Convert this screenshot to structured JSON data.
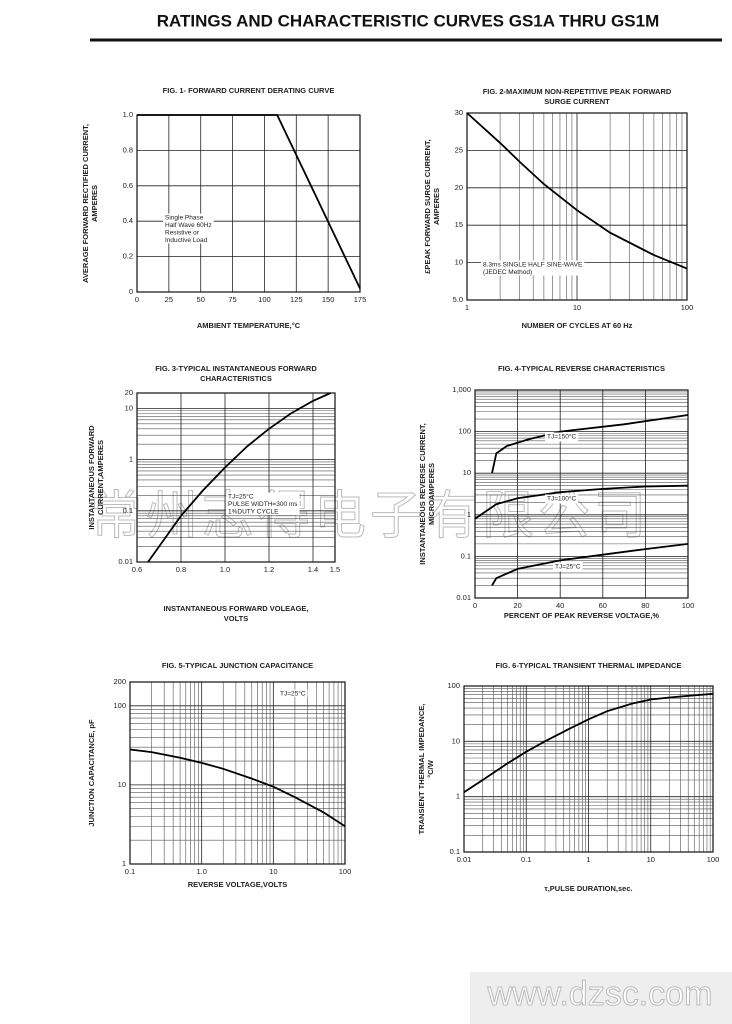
{
  "header": {
    "title": "RATINGS AND CHARACTERISTIC CURVES GS1A THRU GS1M"
  },
  "watermarks": [
    "常州志得电子有限公司",
    "www.dzsc.com"
  ],
  "chart_data": [
    {
      "type": "line",
      "title": [
        "FIG. 1- FORWARD CURRENT DERATING CURVE"
      ],
      "ylabel": [
        "AVERAGE FORWARD RECTIFIED CURRENT,",
        "AMPERES"
      ],
      "xlabel": [
        "AMBIENT TEMPERATURE,°C"
      ],
      "xscale": "linear",
      "yscale": "linear",
      "xlim": [
        0,
        175
      ],
      "ylim": [
        0,
        1
      ],
      "xticks": [
        0,
        25,
        50,
        75,
        100,
        125,
        150,
        175
      ],
      "yticks": [
        0,
        0.2,
        0.4,
        0.6,
        0.8,
        {
          "value": 1,
          "label": "1.0"
        }
      ],
      "grid": true,
      "annotations": [
        [
          "Single Phase",
          "Half Wave 60Hz",
          "Resistive or",
          "Inductive Load"
        ]
      ],
      "series": [
        {
          "color": "#000000",
          "x": [
            0,
            110,
            175
          ],
          "values": [
            1,
            1,
            0.02
          ]
        }
      ]
    },
    {
      "type": "line",
      "title": [
        "FIG. 2-MAXIMUM NON-REPETITIVE PEAK FORWARD",
        "SURGE CURRENT"
      ],
      "ylabel": [
        "£PEAK  FORWARD SURGE CURRENT,",
        "AMPERES"
      ],
      "xlabel": [
        "NUMBER OF CYCLES AT 60 Hz"
      ],
      "xscale": "log",
      "yscale": "linear",
      "xlim": [
        1,
        100
      ],
      "ylim": [
        5,
        30
      ],
      "xticks": [
        1,
        10,
        100
      ],
      "yticks": [
        {
          "value": 5,
          "label": "5.0"
        },
        10,
        15,
        20,
        25,
        30
      ],
      "grid": true,
      "xminor": [
        2,
        3,
        4,
        5,
        6,
        7,
        8,
        9,
        20,
        30,
        40,
        50,
        60,
        70,
        80,
        90
      ],
      "annotations": [
        [
          "8.3ms SINGLE HALF SINE-WAVE",
          "(JEDEC Method)"
        ]
      ],
      "series": [
        {
          "color": "#000000",
          "x": [
            1,
            2,
            3,
            5,
            10,
            20,
            50,
            100
          ],
          "values": [
            30,
            26,
            23.5,
            20.5,
            17,
            14,
            11,
            9.2
          ]
        }
      ]
    },
    {
      "type": "line",
      "title": [
        "FIG. 3-TYPICAL INSTANTANEOUS FORWARD",
        "CHARACTERISTICS"
      ],
      "ylabel": [
        "INSTANTANEOUS FORWARD",
        "CURRENT,AMPERES"
      ],
      "xlabel": [
        "INSTANTANEOUS FORWARD VOLEAGE,",
        "VOLTS"
      ],
      "xscale": "linear",
      "yscale": "log",
      "xlim": [
        0.6,
        1.5
      ],
      "ylim": [
        0.01,
        20
      ],
      "xticks": [
        0.6,
        0.8,
        {
          "value": 1,
          "label": "1.0"
        },
        1.2,
        1.4,
        1.5
      ],
      "yticks": [
        0.01,
        0.1,
        1,
        10,
        20
      ],
      "grid": true,
      "yminor": [
        0.02,
        0.03,
        0.04,
        0.05,
        0.06,
        0.07,
        0.08,
        0.09,
        0.2,
        0.3,
        0.4,
        0.5,
        0.6,
        0.7,
        0.8,
        0.9,
        2,
        3,
        4,
        5,
        6,
        7,
        8,
        9
      ],
      "annotations": [
        [
          "TJ=25°C",
          "PULSE WIDTH=300 ms",
          "1%DUTY CYCLE"
        ]
      ],
      "series": [
        {
          "color": "#000000",
          "x": [
            0.65,
            0.7,
            0.8,
            0.9,
            1.0,
            1.1,
            1.2,
            1.3,
            1.4,
            1.48
          ],
          "values": [
            0.01,
            0.02,
            0.08,
            0.25,
            0.7,
            1.8,
            4,
            8,
            14,
            20
          ]
        }
      ]
    },
    {
      "type": "line",
      "title": [
        "FIG. 4-TYPICAL REVERSE CHARACTERISTICS"
      ],
      "ylabel": [
        "INSTANTANEOUS REVERSE CURRENT,",
        "MICROAMPERES"
      ],
      "xlabel": [
        "PERCENT OF PEAK REVERSE VOLTAGE,%"
      ],
      "xscale": "linear",
      "yscale": "log",
      "xlim": [
        0,
        100
      ],
      "ylim": [
        0.01,
        1000
      ],
      "xticks": [
        0,
        20,
        40,
        60,
        80,
        100
      ],
      "yticks": [
        0.01,
        0.1,
        1,
        10,
        100,
        {
          "value": 1000,
          "label": "1,000"
        }
      ],
      "grid": true,
      "yminor": [
        0.02,
        0.03,
        0.04,
        0.05,
        0.06,
        0.07,
        0.08,
        0.09,
        0.2,
        0.3,
        0.4,
        0.5,
        0.6,
        0.7,
        0.8,
        0.9,
        2,
        3,
        4,
        5,
        6,
        7,
        8,
        9,
        20,
        30,
        40,
        50,
        60,
        70,
        80,
        90,
        200,
        300,
        400,
        500,
        600,
        700,
        800,
        900
      ],
      "annotations": [],
      "series": [
        {
          "name": "TJ=150°C",
          "color": "#000000",
          "x": [
            8,
            10,
            15,
            25,
            40,
            70,
            100
          ],
          "values": [
            10,
            30,
            45,
            65,
            100,
            150,
            250
          ]
        },
        {
          "name": "TJ=100°C",
          "color": "#000000",
          "x": [
            0,
            5,
            10,
            20,
            40,
            60,
            80,
            100
          ],
          "values": [
            0.8,
            1.2,
            1.8,
            2.5,
            3.5,
            4.2,
            4.8,
            5
          ]
        },
        {
          "name": "TJ=25°C",
          "color": "#000000",
          "x": [
            8,
            10,
            20,
            40,
            60,
            80,
            100
          ],
          "values": [
            0.02,
            0.03,
            0.05,
            0.08,
            0.11,
            0.15,
            0.2
          ]
        }
      ]
    },
    {
      "type": "line",
      "title": [
        "FIG. 5-TYPICAL JUNCTION CAPACITANCE"
      ],
      "ylabel": [
        "JUNCTION CAPACITANCE, pF"
      ],
      "xlabel": [
        "REVERSE VOLTAGE,VOLTS"
      ],
      "xscale": "log",
      "yscale": "log",
      "xlim": [
        0.1,
        100
      ],
      "ylim": [
        1,
        200
      ],
      "xticks": [
        0.1,
        {
          "value": 1,
          "label": "1.0"
        },
        10,
        100
      ],
      "yticks": [
        1,
        10,
        100,
        200
      ],
      "grid": true,
      "xminor": [
        0.2,
        0.3,
        0.4,
        0.5,
        0.6,
        0.7,
        0.8,
        0.9,
        2,
        3,
        4,
        5,
        6,
        7,
        8,
        9,
        20,
        30,
        40,
        50,
        60,
        70,
        80,
        90
      ],
      "yminor": [
        2,
        3,
        4,
        5,
        6,
        7,
        8,
        9,
        20,
        30,
        40,
        50,
        60,
        70,
        80,
        90
      ],
      "annotations": [
        [
          "TJ=25°C"
        ]
      ],
      "series": [
        {
          "color": "#000000",
          "x": [
            0.1,
            0.2,
            0.5,
            1,
            2,
            5,
            10,
            20,
            50,
            100
          ],
          "values": [
            28,
            26,
            22,
            19,
            16,
            12,
            9.5,
            7,
            4.5,
            3
          ]
        }
      ]
    },
    {
      "type": "line",
      "title": [
        "FIG. 6-TYPICAL TRANSIENT THERMAL IMPEDANCE"
      ],
      "ylabel": [
        "TRANSIENT THERMAL IMPEDANCE,",
        "°C/W"
      ],
      "xlabel": [
        "τ,PULSE DURATION,sec."
      ],
      "xscale": "log",
      "yscale": "log",
      "xlim": [
        0.01,
        100
      ],
      "ylim": [
        0.1,
        100
      ],
      "xticks": [
        0.01,
        0.1,
        1,
        10,
        100
      ],
      "yticks": [
        0.1,
        1,
        10,
        100
      ],
      "grid": true,
      "xminor": [
        0.02,
        0.03,
        0.04,
        0.05,
        0.06,
        0.07,
        0.08,
        0.09,
        0.2,
        0.3,
        0.4,
        0.5,
        0.6,
        0.7,
        0.8,
        0.9,
        2,
        3,
        4,
        5,
        6,
        7,
        8,
        9,
        20,
        30,
        40,
        50,
        60,
        70,
        80,
        90
      ],
      "yminor": [
        0.2,
        0.3,
        0.4,
        0.5,
        0.6,
        0.7,
        0.8,
        0.9,
        2,
        3,
        4,
        5,
        6,
        7,
        8,
        9,
        20,
        30,
        40,
        50,
        60,
        70,
        80,
        90
      ],
      "annotations": [],
      "series": [
        {
          "color": "#000000",
          "x": [
            0.01,
            0.02,
            0.05,
            0.1,
            0.2,
            0.5,
            1,
            2,
            5,
            10,
            20,
            50,
            100
          ],
          "values": [
            1.2,
            2,
            4,
            6.5,
            10,
            17,
            25,
            35,
            48,
            57,
            62,
            68,
            72
          ]
        }
      ]
    }
  ]
}
